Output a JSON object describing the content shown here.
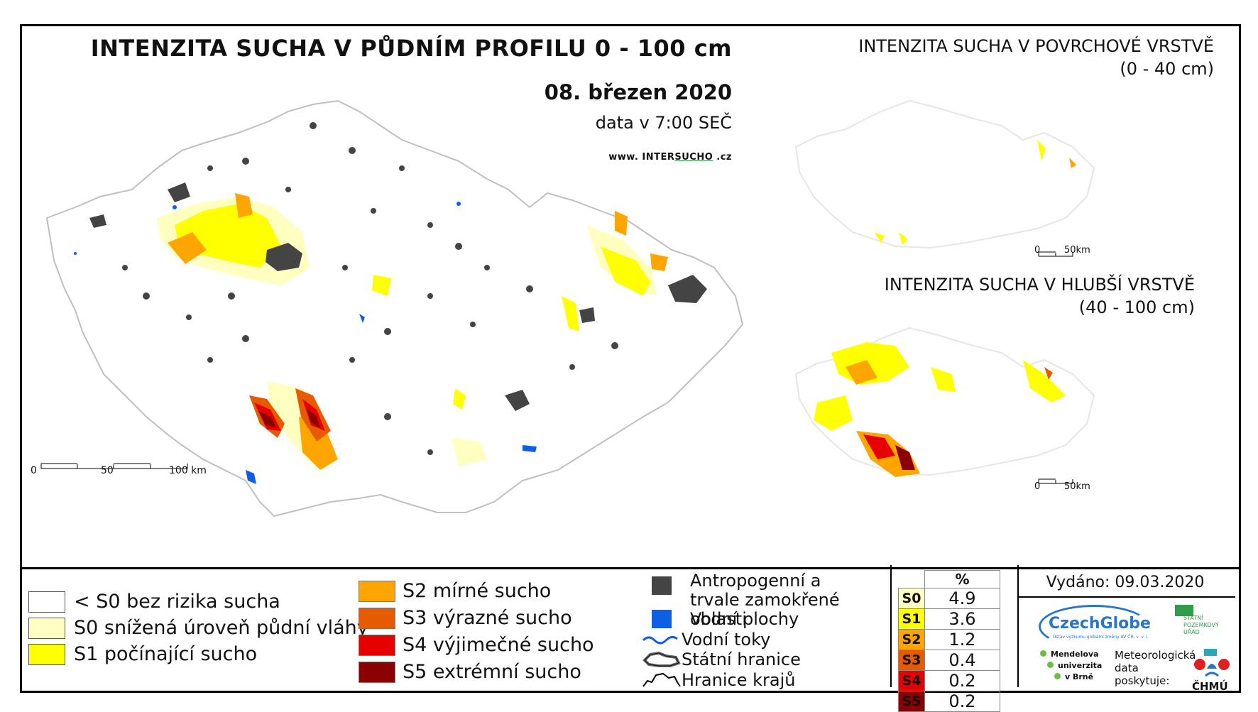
{
  "main_map": {
    "title": "INTENZITA SUCHA V PŮDNÍM PROFILU 0 - 100 cm",
    "date": "08. březen 2020",
    "time_note": "data v 7:00 SEČ",
    "website_prefix": "www. INTER",
    "website_highlight": "SUCHO",
    "website_suffix": " .cz",
    "scale_labels": [
      "0",
      "50",
      "100 km"
    ]
  },
  "inset_top": {
    "title": "INTENZITA SUCHA V POVRCHOVÉ VRSTVĚ",
    "subtitle": "(0 - 40 cm)",
    "scale_labels": [
      "0",
      "50km"
    ]
  },
  "inset_bottom": {
    "title": "INTENZITA SUCHA V HLUBŠÍ VRSTVĚ",
    "subtitle": "(40 - 100 cm)",
    "scale_labels": [
      "0",
      "50km"
    ]
  },
  "legend": {
    "categories": [
      {
        "label": "< S0 bez rizika sucha",
        "color": "#ffffff"
      },
      {
        "label": "S0 snížená úroveň půdní vláhy",
        "color": "#ffffc0"
      },
      {
        "label": "S1 počínající sucho",
        "color": "#ffff00"
      },
      {
        "label": "S2 mírné sucho",
        "color": "#ffa500"
      },
      {
        "label": "S3 výrazné sucho",
        "color": "#e65a00"
      },
      {
        "label": "S4 výjimečné sucho",
        "color": "#e60000"
      },
      {
        "label": "S5 extrémní sucho",
        "color": "#8b0000"
      }
    ],
    "symbols": [
      {
        "label": "Antropogenní a trvale zamokřené oblasti",
        "icon": "dark-square-icon",
        "color": "#444444"
      },
      {
        "label": "Vodní plochy",
        "icon": "blue-square-icon",
        "color": "#0d5fe6"
      },
      {
        "label": "Vodní toky",
        "icon": "river-line-icon",
        "color": "#0d5fe6"
      },
      {
        "label": "Státní hranice",
        "icon": "state-border-icon"
      },
      {
        "label": "Hranice krajů",
        "icon": "region-border-icon"
      }
    ]
  },
  "percent_table": {
    "header": "%",
    "rows": [
      {
        "code": "S0",
        "value": "4.9",
        "color": "#ffffc0"
      },
      {
        "code": "S1",
        "value": "3.6",
        "color": "#ffff00"
      },
      {
        "code": "S2",
        "value": "1.2",
        "color": "#ffa500"
      },
      {
        "code": "S3",
        "value": "0.4",
        "color": "#e65a00"
      },
      {
        "code": "S4",
        "value": "0.2",
        "color": "#e60000"
      },
      {
        "code": "S5",
        "value": "0.2",
        "color": "#8b0000"
      }
    ]
  },
  "footer": {
    "issued": "Vydáno: 09.03.2020",
    "czechglobe": "CzechGlobe",
    "czechglobe_sub": "Ústav výzkumu globální změny AV ČR, v. v. i.",
    "spu": "STÁTNÍ POZEMKOVÝ ÚŘAD",
    "mendel_lines": [
      "Mendelova",
      "univerzita",
      "v Brně"
    ],
    "data_note_lines": [
      "Meteorologická",
      "data",
      "poskytuje:"
    ],
    "chmu": "ČHMÚ"
  }
}
